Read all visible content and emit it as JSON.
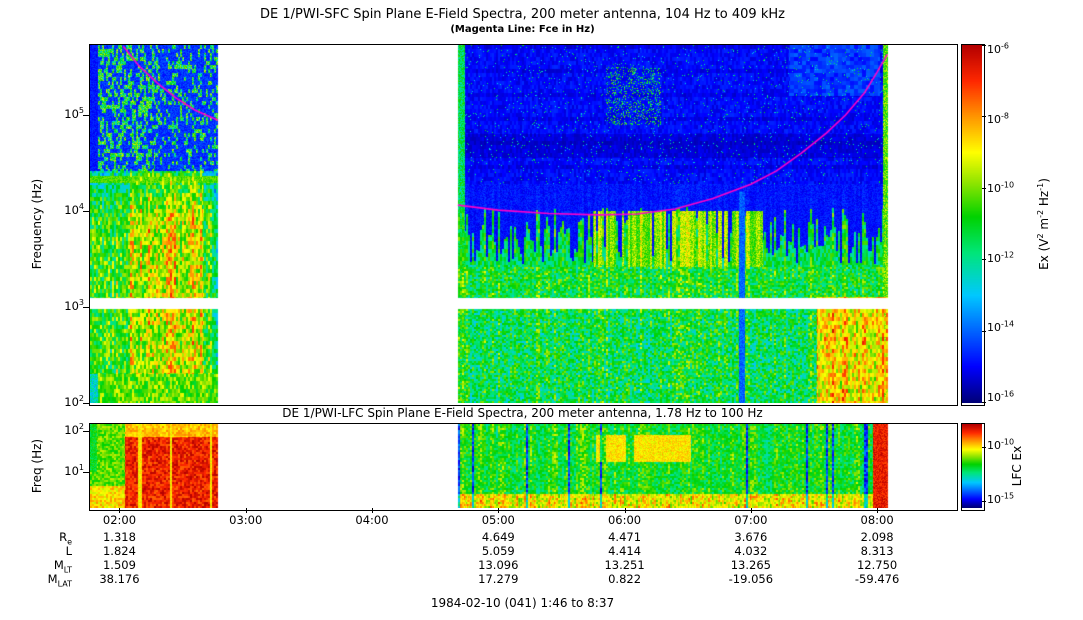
{
  "sfc": {
    "title": "DE 1/PWI-SFC  Spin Plane E-Field Spectra, 200 meter antenna, 104 Hz to 409 kHz",
    "subtitle": "(Magenta Line: Fce in Hz)",
    "ylabel": "Frequency (Hz)",
    "ytick_exps": [
      5,
      4,
      3,
      2
    ],
    "colorbar": {
      "label": "Ex (V^2 m^-2 Hz^-1)",
      "tick_exps": [
        -6,
        -8,
        -10,
        -12,
        -14,
        -16
      ]
    }
  },
  "lfc": {
    "title": "DE 1/PWI-LFC  Spin Plane E-Field Spectra, 200 meter antenna, 1.78 Hz to 100 Hz",
    "ylabel": "Freq (Hz)",
    "ytick_exps": [
      2,
      1
    ],
    "colorbar": {
      "label": "LFC Ex",
      "ticks": [
        {
          "exp": -10,
          "frac": 0.27
        },
        {
          "exp": -15,
          "frac": 0.92
        }
      ]
    }
  },
  "time_axis": {
    "ticks": [
      "02:00",
      "03:00",
      "04:00",
      "05:00",
      "06:00",
      "07:00",
      "08:00"
    ]
  },
  "ephemeris": {
    "row_labels": [
      "R_e",
      "L",
      "M_LT",
      "M_LAT"
    ],
    "column_tick_idx": [
      0,
      3,
      4,
      5,
      6
    ],
    "rows": [
      [
        "1.318",
        "4.649",
        "4.471",
        "3.676",
        "2.098"
      ],
      [
        "1.824",
        "5.059",
        "4.414",
        "4.032",
        "8.313"
      ],
      [
        "1.509",
        "13.096",
        "13.251",
        "13.265",
        "12.750"
      ],
      [
        "38.176",
        "17.279",
        "0.822",
        "-19.056",
        "-59.476"
      ]
    ]
  },
  "footer": "1984-02-10 (041) 1:46 to 8:37",
  "chart_data": [
    {
      "type": "heatmap",
      "name": "SFC spin-plane E-field spectrogram",
      "title": "DE 1/PWI-SFC  Spin Plane E-Field Spectra, 200 meter antenna, 104 Hz to 409 kHz",
      "x_unit": "UT on 1984-02-10 (day 041)",
      "x_range_hours": [
        1.7667,
        8.6167
      ],
      "x_ticks": [
        "02:00",
        "03:00",
        "04:00",
        "05:00",
        "06:00",
        "07:00",
        "08:00"
      ],
      "y_unit": "Frequency (Hz), log scale",
      "y_log10_range": [
        2,
        5.729
      ],
      "z_label": "Ex (V^2 m^-2 Hz^-1)",
      "z_log10_range": [
        -16,
        -6
      ],
      "data_gaps_hours": [
        [
          2.783,
          4.683
        ],
        [
          8.083,
          8.6167
        ]
      ],
      "white_band_log10hz": [
        2.978,
        3.09
      ],
      "fce_line": {
        "color": "#ff00cc",
        "legend": "Magenta Line: Fce in Hz",
        "segments": [
          {
            "hours": [
              2.03,
              2.15,
              2.3,
              2.45,
              2.6,
              2.78
            ],
            "hz": [
              520000,
              330000,
              215000,
              150000,
              112000,
              88000
            ]
          },
          {
            "hours": [
              4.68,
              5.0,
              5.4,
              5.8,
              6.1,
              6.4,
              6.7,
              7.0,
              7.2,
              7.4,
              7.6,
              7.75,
              7.9,
              8.0,
              8.08
            ],
            "hz": [
              11500,
              10200,
              9400,
              9100,
              9300,
              10500,
              13500,
              19000,
              26000,
              40000,
              65000,
              100000,
              170000,
              280000,
              430000
            ]
          }
        ]
      },
      "features": [
        "Intense green/yellow broadband emission below ~20 kHz from 01:46 to ~02:47",
        "Speckled green hiss up to ~400 kHz near 02:00-02:20 over blue background",
        "After 04:41: dark blue background above ~15 kHz; green band ~300 Hz - 5 kHz with vertical striations",
        "Enhanced yellow-green band ~3-8 kHz from ~05:45 to 07:00",
        "Intense yellow/orange emission below ~1 kHz from ~07:30 to 08:05",
        "Bright narrow vertical stripes at segment edges (~04:41 and ~08:05)",
        "White instrumental gap near 1 kHz across the whole interval",
        "Magenta Fce line high near both perigee ends, minimum ~9 kHz near 06:00"
      ]
    },
    {
      "type": "heatmap",
      "name": "LFC spin-plane E-field spectrogram",
      "title": "DE 1/PWI-LFC  Spin Plane E-Field Spectra, 200 meter antenna, 1.78 Hz to 100 Hz",
      "x_unit": "UT on 1984-02-10 (day 041)",
      "x_range_hours": [
        1.7667,
        8.6167
      ],
      "y_unit": "Frequency (Hz), log scale",
      "y_log10_range": [
        0.25,
        2
      ],
      "z_label": "LFC Ex",
      "data_gaps_hours": [
        [
          2.783,
          4.683
        ],
        [
          8.083,
          8.6167
        ]
      ],
      "features": [
        "Intense red broadband burst ~02:05-02:47 spanning the full 1.78-100 Hz band",
        "Green striated background after 04:41",
        "Yellow enhancement near 06:00-06:30 around 20-60 Hz",
        "Yellow/orange enhancement below ~4 Hz throughout",
        "Red column near 08:00-08:05"
      ]
    }
  ]
}
